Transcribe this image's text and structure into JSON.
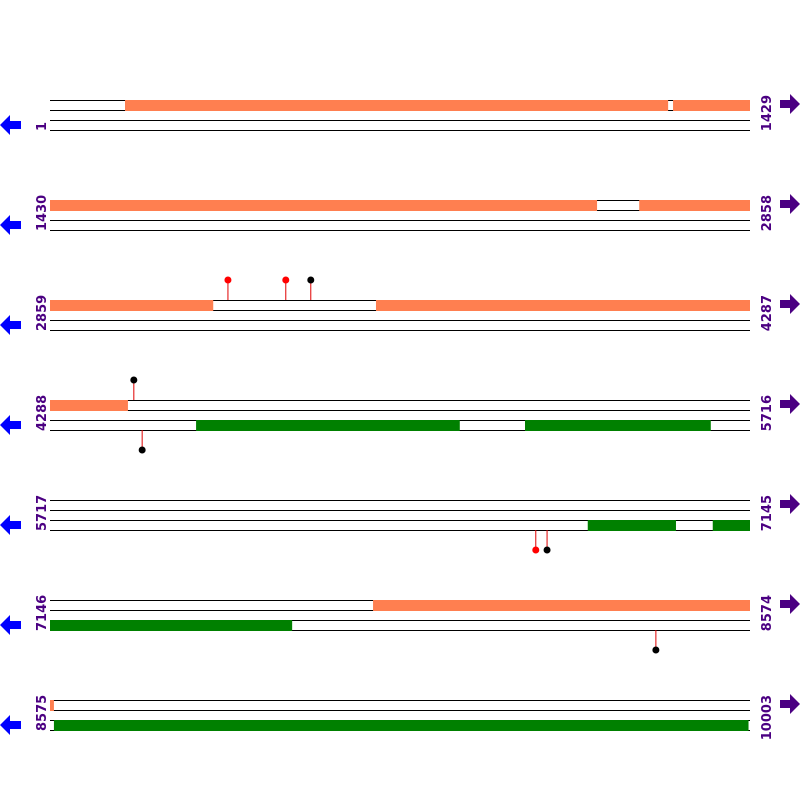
{
  "colors": {
    "forward_feature": "#ff7f50",
    "reverse_feature": "#008000",
    "track_line": "#000000",
    "label": "#4b0082",
    "left_arrow": "#0000ff",
    "right_arrow": "#4b0082",
    "site_red": "#ff0000",
    "site_black": "#000000"
  },
  "icons": {
    "left": "arrow-left-icon",
    "right": "arrow-right-icon"
  },
  "rows": [
    {
      "start": "1",
      "end": "1429",
      "s": 1,
      "e": 1429,
      "top": [
        [
          154,
          1262
        ],
        [
          1272,
          1429
        ]
      ],
      "bottom": [],
      "sites_top": [],
      "sites_bottom": []
    },
    {
      "start": "1430",
      "end": "2858",
      "s": 1430,
      "e": 2858,
      "top": [
        [
          1430,
          2546
        ],
        [
          2632,
          2858
        ]
      ],
      "bottom": [],
      "sites_top": [],
      "sites_bottom": []
    },
    {
      "start": "2859",
      "end": "4287",
      "s": 2859,
      "e": 4287,
      "top": [
        [
          2859,
          3192
        ],
        [
          3524,
          4287
        ]
      ],
      "bottom": [],
      "sites_top": [
        {
          "pos": 3222,
          "color": "red"
        },
        {
          "pos": 3340,
          "color": "red"
        },
        {
          "pos": 3391,
          "color": "black"
        }
      ],
      "sites_bottom": []
    },
    {
      "start": "4288",
      "end": "5716",
      "s": 4288,
      "e": 5716,
      "top": [
        [
          4288,
          4447
        ]
      ],
      "bottom": [
        [
          4586,
          5124
        ],
        [
          5257,
          5636
        ]
      ],
      "sites_top": [
        {
          "pos": 4459,
          "color": "black"
        }
      ],
      "sites_bottom": [
        {
          "pos": 4476,
          "color": "black"
        }
      ]
    },
    {
      "start": "5717",
      "end": "7145",
      "s": 5717,
      "e": 7145,
      "top": [],
      "bottom": [
        [
          6814,
          6994
        ],
        [
          7069,
          7145
        ]
      ],
      "sites_top": [],
      "sites_bottom": [
        {
          "pos": 6708,
          "color": "red"
        },
        {
          "pos": 6731,
          "color": "black"
        }
      ]
    },
    {
      "start": "7146",
      "end": "8574",
      "s": 7146,
      "e": 8574,
      "top": [
        [
          7805,
          8574
        ]
      ],
      "bottom": [
        [
          7146,
          7640
        ]
      ],
      "sites_top": [],
      "sites_bottom": [
        {
          "pos": 8382,
          "color": "black"
        }
      ]
    },
    {
      "start": "8575",
      "end": "10003",
      "s": 8575,
      "e": 10003,
      "top": [
        [
          8575,
          8583
        ]
      ],
      "bottom": [
        [
          8583,
          10000
        ]
      ],
      "sites_top": [],
      "sites_bottom": []
    }
  ]
}
